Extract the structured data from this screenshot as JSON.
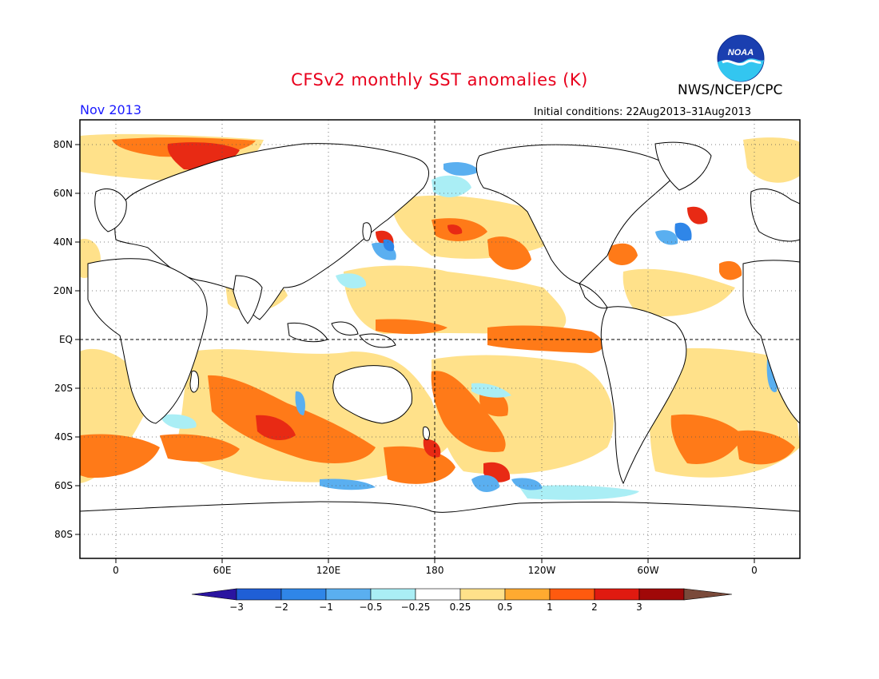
{
  "header": {
    "title": "CFSv2 monthly SST anomalies (K)",
    "agency": "NWS/NCEP/CPC",
    "logo_text": "NOAA",
    "period": "Nov 2013",
    "initial_conditions": "Initial conditions: 22Aug2013–31Aug2013"
  },
  "axes": {
    "lat_labels": [
      "80N",
      "60N",
      "40N",
      "20N",
      "EQ",
      "20S",
      "40S",
      "60S",
      "80S"
    ],
    "lon_labels": [
      "0",
      "60E",
      "120E",
      "180",
      "120W",
      "60W",
      "0"
    ]
  },
  "colorbar": {
    "labels": [
      "−3",
      "−2",
      "−1",
      "−0.5",
      "−0.25",
      "0.25",
      "0.5",
      "1",
      "2",
      "3"
    ],
    "colors": [
      "#2a14a0",
      "#1f5fd6",
      "#2f86e8",
      "#5aaff0",
      "#aaeef5",
      "#ffffff",
      "#ffe18a",
      "#ffaa30",
      "#ff5a0f",
      "#e01a10",
      "#a00808",
      "#7a4a3a"
    ]
  },
  "anomaly_colors": {
    "weak_warm": "#ffe18a",
    "warm": "#ff7a18",
    "strong_warm": "#e82a14",
    "very_strong_warm": "#b00a0a",
    "weak_cool": "#aaeef5",
    "cool": "#5aaff0",
    "strong_cool": "#2f86e8",
    "very_strong_cool": "#1f4fc6"
  }
}
